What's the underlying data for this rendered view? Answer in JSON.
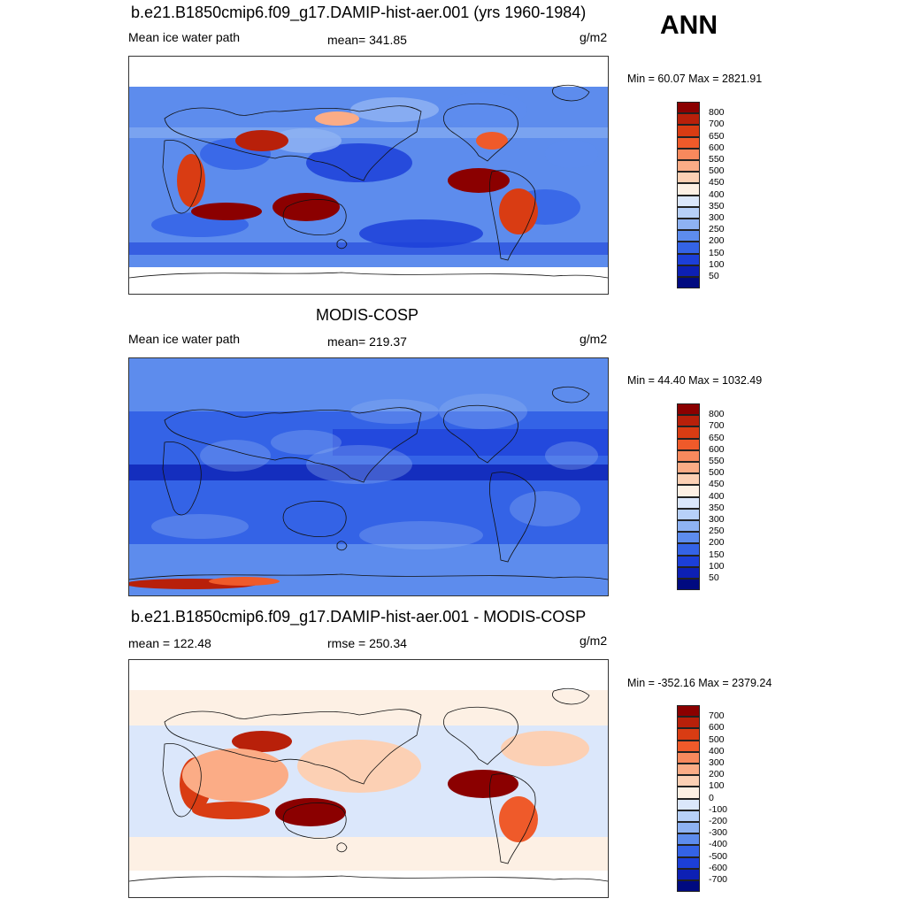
{
  "season": "ANN",
  "panels": [
    {
      "title": "b.e21.B1850cmip6.f09_g17.DAMIP-hist-aer.001 (yrs 1960-1984)",
      "left_label": "Mean ice water path",
      "center_label": "mean= 341.85",
      "units": "g/m2",
      "minmax": "Min =  60.07 Max = 2821.91",
      "palette": "blue-red",
      "legend_labels": [
        "800",
        "700",
        "650",
        "600",
        "550",
        "500",
        "450",
        "400",
        "350",
        "300",
        "250",
        "200",
        "150",
        "100",
        "50"
      ],
      "legend_colors": [
        "#8b0000",
        "#b8200a",
        "#d93c13",
        "#ef5a2a",
        "#f8895d",
        "#fbac86",
        "#fcd0b4",
        "#fdf0e4",
        "#dbe7fb",
        "#b7d0f8",
        "#8eb2f2",
        "#5d8ced",
        "#3463e6",
        "#1c3fd8",
        "#0d20b4",
        "#000a80"
      ]
    },
    {
      "title": "MODIS-COSP",
      "left_label": "Mean ice water path",
      "center_label": "mean= 219.37",
      "units": "g/m2",
      "minmax": "Min =  44.40 Max = 1032.49",
      "palette": "blue-red",
      "legend_labels": [
        "800",
        "700",
        "650",
        "600",
        "550",
        "500",
        "450",
        "400",
        "350",
        "300",
        "250",
        "200",
        "150",
        "100",
        "50"
      ],
      "legend_colors": [
        "#8b0000",
        "#b8200a",
        "#d93c13",
        "#ef5a2a",
        "#f8895d",
        "#fbac86",
        "#fcd0b4",
        "#fdf0e4",
        "#dbe7fb",
        "#b7d0f8",
        "#8eb2f2",
        "#5d8ced",
        "#3463e6",
        "#1c3fd8",
        "#0d20b4",
        "#000a80"
      ]
    },
    {
      "title": "b.e21.B1850cmip6.f09_g17.DAMIP-hist-aer.001 - MODIS-COSP",
      "left_label": "mean = 122.48",
      "center_label": "rmse = 250.34",
      "units": "g/m2",
      "minmax": "Min = -352.16 Max = 2379.24",
      "palette": "diff",
      "legend_labels": [
        "700",
        "600",
        "500",
        "400",
        "300",
        "200",
        "100",
        "0",
        "-100",
        "-200",
        "-300",
        "-400",
        "-500",
        "-600",
        "-700"
      ],
      "legend_colors": [
        "#8b0000",
        "#b8200a",
        "#d93c13",
        "#ef5a2a",
        "#f8895d",
        "#fbac86",
        "#fcd0b4",
        "#fdf0e4",
        "#dbe7fb",
        "#b7d0f8",
        "#8eb2f2",
        "#5d8ced",
        "#3463e6",
        "#1c3fd8",
        "#0d20b4",
        "#000a80"
      ]
    }
  ]
}
